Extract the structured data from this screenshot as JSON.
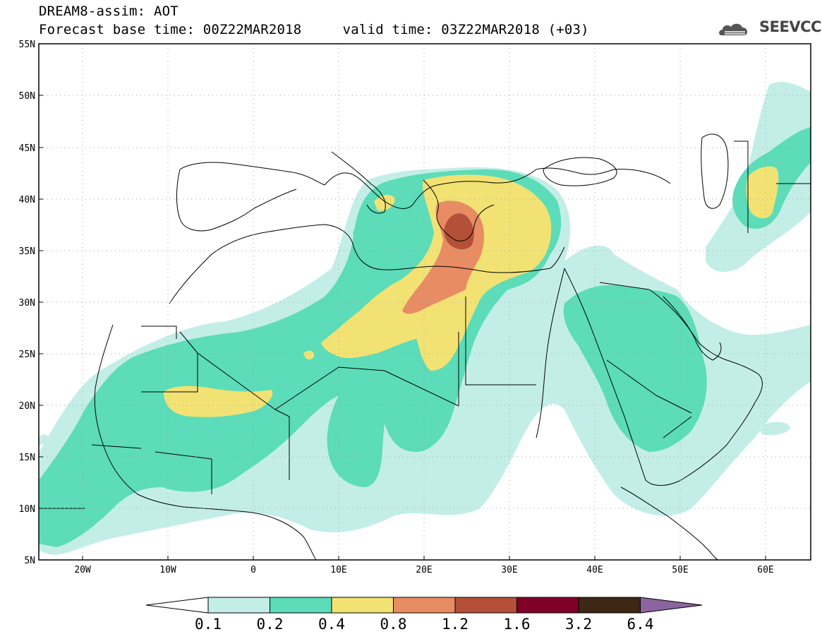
{
  "title": {
    "line1": "DREAM8-assim: AOT",
    "line2": "Forecast base time: 00Z22MAR2018     valid time: 03Z22MAR2018 (+03)"
  },
  "logo": {
    "text": "SEEVCCC",
    "icon": "cloud-icon",
    "color": "#555555"
  },
  "map": {
    "projection": "lat-lon",
    "lon_range": [
      -25,
      65
    ],
    "lat_range": [
      5,
      55
    ],
    "lat_ticks": [
      "55N",
      "50N",
      "45N",
      "40N",
      "35N",
      "30N",
      "25N",
      "20N",
      "15N",
      "10N",
      "5N"
    ],
    "lon_ticks": [
      "20W",
      "10W",
      "0",
      "10E",
      "20E",
      "30E",
      "40E",
      "50E",
      "60E"
    ],
    "grid": "dotted"
  },
  "colorbar": {
    "labels": [
      "0.1",
      "0.2",
      "0.4",
      "0.8",
      "1.2",
      "1.6",
      "3.2",
      "6.4"
    ],
    "colors": [
      "#ffffff",
      "#c3eee8",
      "#5cdcb8",
      "#f2e274",
      "#e88c64",
      "#b45038",
      "#800028",
      "#3c2814",
      "#8c64a0"
    ]
  }
}
